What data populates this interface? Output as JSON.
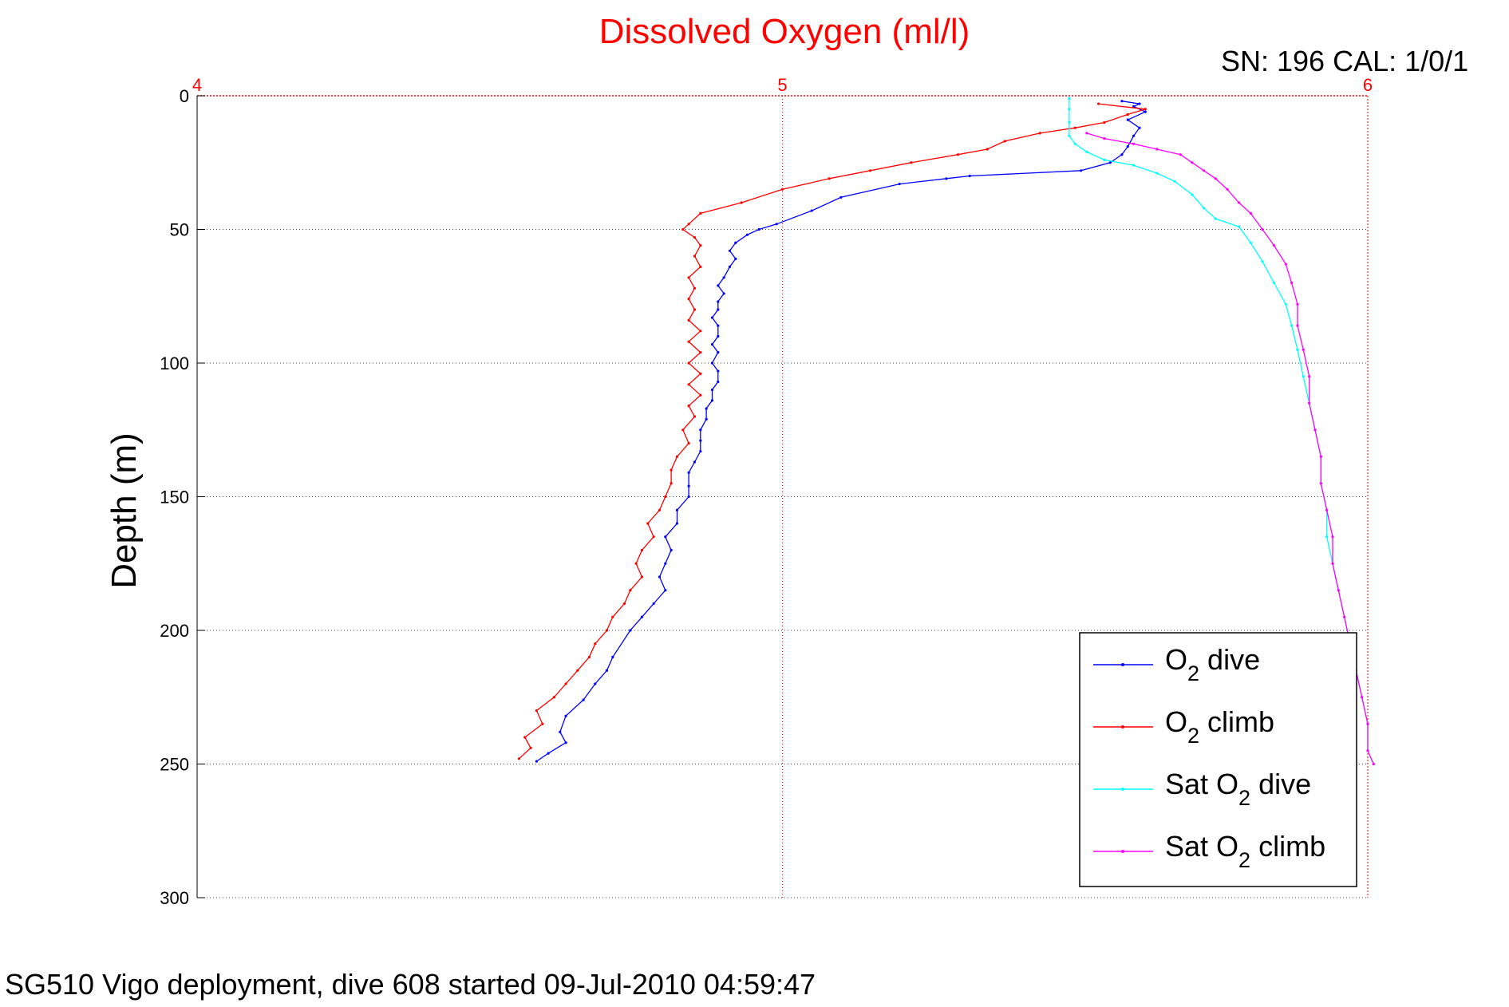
{
  "chart_data": {
    "type": "line",
    "title": "Dissolved Oxygen (ml/l)",
    "ylabel": "Depth (m)",
    "xlabel": "",
    "xlim": [
      4,
      6
    ],
    "ylim": [
      0,
      300
    ],
    "y_reversed": true,
    "x_axis_position": "top",
    "x_ticks": [
      4,
      5,
      6
    ],
    "x_tick_labels": [
      "4",
      "5",
      "6"
    ],
    "y_ticks": [
      0,
      50,
      100,
      150,
      200,
      250,
      300
    ],
    "y_tick_labels": [
      "0",
      "50",
      "100",
      "150",
      "200",
      "250",
      "300"
    ],
    "grid": true,
    "legend_position": "bottom-right",
    "annotation_top_right": "SN: 196  CAL: 1/0/1",
    "footer": "SG510 Vigo deployment, dive 608 started 09-Jul-2010 04:59:47",
    "series": [
      {
        "legend_main": "O",
        "legend_sub": "2",
        "legend_rest": " dive",
        "color": "#0000ff",
        "points": [
          [
            5.58,
            2
          ],
          [
            5.61,
            3
          ],
          [
            5.6,
            4
          ],
          [
            5.62,
            6
          ],
          [
            5.59,
            9
          ],
          [
            5.61,
            12
          ],
          [
            5.6,
            15
          ],
          [
            5.59,
            19
          ],
          [
            5.58,
            22
          ],
          [
            5.56,
            25
          ],
          [
            5.51,
            28
          ],
          [
            5.32,
            30
          ],
          [
            5.28,
            31
          ],
          [
            5.2,
            33
          ],
          [
            5.1,
            38
          ],
          [
            5.05,
            43
          ],
          [
            4.99,
            48
          ],
          [
            4.96,
            50
          ],
          [
            4.94,
            52
          ],
          [
            4.92,
            55
          ],
          [
            4.91,
            58
          ],
          [
            4.92,
            61
          ],
          [
            4.91,
            64
          ],
          [
            4.9,
            68
          ],
          [
            4.89,
            71
          ],
          [
            4.9,
            74
          ],
          [
            4.89,
            77
          ],
          [
            4.89,
            80
          ],
          [
            4.88,
            83
          ],
          [
            4.89,
            86
          ],
          [
            4.89,
            90
          ],
          [
            4.88,
            93
          ],
          [
            4.89,
            96
          ],
          [
            4.88,
            100
          ],
          [
            4.89,
            103
          ],
          [
            4.89,
            107
          ],
          [
            4.88,
            110
          ],
          [
            4.88,
            114
          ],
          [
            4.87,
            117
          ],
          [
            4.87,
            121
          ],
          [
            4.86,
            125
          ],
          [
            4.86,
            129
          ],
          [
            4.86,
            133
          ],
          [
            4.85,
            137
          ],
          [
            4.84,
            141
          ],
          [
            4.84,
            146
          ],
          [
            4.84,
            150
          ],
          [
            4.82,
            155
          ],
          [
            4.82,
            160
          ],
          [
            4.8,
            165
          ],
          [
            4.81,
            170
          ],
          [
            4.8,
            175
          ],
          [
            4.79,
            180
          ],
          [
            4.8,
            185
          ],
          [
            4.78,
            190
          ],
          [
            4.76,
            195
          ],
          [
            4.74,
            200
          ],
          [
            4.71,
            210
          ],
          [
            4.7,
            215
          ],
          [
            4.68,
            220
          ],
          [
            4.66,
            226
          ],
          [
            4.63,
            232
          ],
          [
            4.62,
            238
          ],
          [
            4.63,
            242
          ],
          [
            4.6,
            246
          ],
          [
            4.58,
            249
          ]
        ]
      },
      {
        "legend_main": "O",
        "legend_sub": "2",
        "legend_rest": " climb",
        "color": "#ff0000",
        "points": [
          [
            5.54,
            3
          ],
          [
            5.62,
            5
          ],
          [
            5.59,
            7
          ],
          [
            5.55,
            10
          ],
          [
            5.5,
            12
          ],
          [
            5.44,
            14
          ],
          [
            5.38,
            17
          ],
          [
            5.35,
            20
          ],
          [
            5.3,
            22
          ],
          [
            5.22,
            25
          ],
          [
            5.15,
            28
          ],
          [
            5.08,
            31
          ],
          [
            5.0,
            35
          ],
          [
            4.93,
            40
          ],
          [
            4.86,
            44
          ],
          [
            4.84,
            48
          ],
          [
            4.83,
            50
          ],
          [
            4.85,
            53
          ],
          [
            4.86,
            56
          ],
          [
            4.85,
            60
          ],
          [
            4.86,
            64
          ],
          [
            4.84,
            68
          ],
          [
            4.85,
            72
          ],
          [
            4.84,
            76
          ],
          [
            4.85,
            80
          ],
          [
            4.84,
            84
          ],
          [
            4.86,
            88
          ],
          [
            4.84,
            92
          ],
          [
            4.86,
            96
          ],
          [
            4.84,
            100
          ],
          [
            4.86,
            104
          ],
          [
            4.84,
            108
          ],
          [
            4.86,
            112
          ],
          [
            4.84,
            116
          ],
          [
            4.85,
            120
          ],
          [
            4.83,
            125
          ],
          [
            4.84,
            130
          ],
          [
            4.82,
            135
          ],
          [
            4.81,
            140
          ],
          [
            4.81,
            145
          ],
          [
            4.8,
            150
          ],
          [
            4.79,
            155
          ],
          [
            4.77,
            160
          ],
          [
            4.78,
            165
          ],
          [
            4.76,
            170
          ],
          [
            4.75,
            175
          ],
          [
            4.76,
            180
          ],
          [
            4.74,
            185
          ],
          [
            4.73,
            190
          ],
          [
            4.71,
            195
          ],
          [
            4.7,
            200
          ],
          [
            4.68,
            205
          ],
          [
            4.67,
            210
          ],
          [
            4.65,
            215
          ],
          [
            4.63,
            220
          ],
          [
            4.61,
            225
          ],
          [
            4.58,
            230
          ],
          [
            4.59,
            235
          ],
          [
            4.56,
            240
          ],
          [
            4.57,
            244
          ],
          [
            4.55,
            248
          ]
        ]
      },
      {
        "legend_main": "Sat O",
        "legend_sub": "2",
        "legend_rest": " dive",
        "color": "#00ffff",
        "points": [
          [
            5.49,
            1
          ],
          [
            5.49,
            5
          ],
          [
            5.49,
            10
          ],
          [
            5.49,
            15
          ],
          [
            5.5,
            18
          ],
          [
            5.52,
            21
          ],
          [
            5.55,
            24
          ],
          [
            5.6,
            26
          ],
          [
            5.64,
            29
          ],
          [
            5.67,
            32
          ],
          [
            5.7,
            37
          ],
          [
            5.72,
            42
          ],
          [
            5.74,
            46
          ],
          [
            5.78,
            49
          ],
          [
            5.8,
            55
          ],
          [
            5.82,
            62
          ],
          [
            5.84,
            70
          ],
          [
            5.86,
            78
          ],
          [
            5.87,
            86
          ],
          [
            5.88,
            95
          ],
          [
            5.89,
            105
          ],
          [
            5.9,
            115
          ],
          [
            5.91,
            125
          ],
          [
            5.92,
            135
          ],
          [
            5.92,
            145
          ],
          [
            5.93,
            155
          ],
          [
            5.93,
            165
          ],
          [
            5.94,
            175
          ],
          [
            5.95,
            185
          ],
          [
            5.96,
            195
          ],
          [
            5.97,
            205
          ],
          [
            5.98,
            215
          ],
          [
            5.99,
            225
          ],
          [
            6.0,
            235
          ],
          [
            6.0,
            245
          ],
          [
            6.01,
            250
          ]
        ]
      },
      {
        "legend_main": "Sat O",
        "legend_sub": "2",
        "legend_rest": " climb",
        "color": "#ff00ff",
        "points": [
          [
            5.52,
            14
          ],
          [
            5.55,
            16
          ],
          [
            5.6,
            18
          ],
          [
            5.64,
            20
          ],
          [
            5.68,
            22
          ],
          [
            5.7,
            25
          ],
          [
            5.72,
            28
          ],
          [
            5.74,
            31
          ],
          [
            5.76,
            35
          ],
          [
            5.78,
            40
          ],
          [
            5.8,
            44
          ],
          [
            5.82,
            50
          ],
          [
            5.84,
            56
          ],
          [
            5.86,
            63
          ],
          [
            5.87,
            70
          ],
          [
            5.88,
            78
          ],
          [
            5.88,
            86
          ],
          [
            5.89,
            95
          ],
          [
            5.9,
            105
          ],
          [
            5.9,
            115
          ],
          [
            5.91,
            125
          ],
          [
            5.92,
            135
          ],
          [
            5.92,
            145
          ],
          [
            5.93,
            155
          ],
          [
            5.94,
            165
          ],
          [
            5.94,
            175
          ],
          [
            5.95,
            185
          ],
          [
            5.96,
            195
          ],
          [
            5.97,
            205
          ],
          [
            5.98,
            215
          ],
          [
            5.99,
            225
          ],
          [
            6.0,
            235
          ],
          [
            6.0,
            245
          ],
          [
            6.01,
            250
          ]
        ]
      }
    ]
  }
}
